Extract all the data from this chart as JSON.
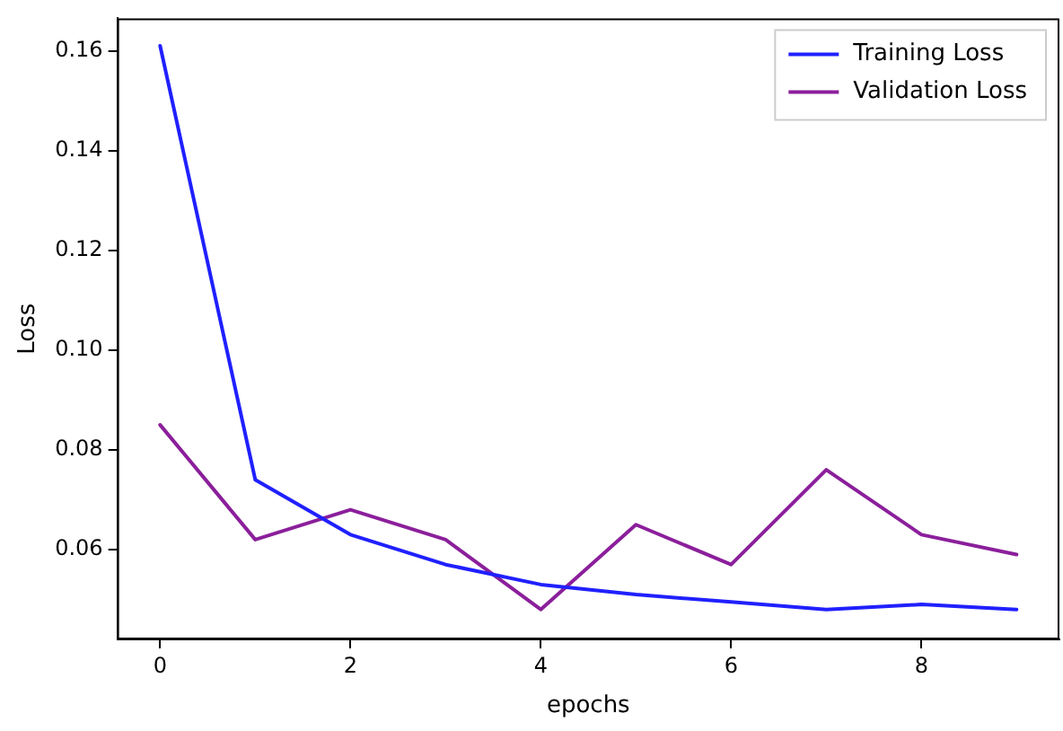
{
  "chart_data": {
    "type": "line",
    "xlabel": "epochs",
    "ylabel": "Loss",
    "x": [
      0,
      1,
      2,
      3,
      4,
      5,
      6,
      7,
      8,
      9
    ],
    "series": [
      {
        "name": "Training Loss",
        "color": "#2020ff",
        "values": [
          0.161,
          0.074,
          0.063,
          0.057,
          0.053,
          0.051,
          0.0495,
          0.048,
          0.049,
          0.048
        ]
      },
      {
        "name": "Validation Loss",
        "color": "#8b1f9b",
        "values": [
          0.085,
          0.062,
          0.068,
          0.062,
          0.048,
          0.065,
          0.057,
          0.076,
          0.063,
          0.059
        ]
      }
    ],
    "xlim": [
      -0.45,
      9.45
    ],
    "ylim": [
      0.042,
      0.1665
    ],
    "xticks": [
      0,
      2,
      4,
      6,
      8
    ],
    "yticks": [
      {
        "value": 0.06,
        "label": "0.06"
      },
      {
        "value": 0.08,
        "label": "0.08"
      },
      {
        "value": 0.1,
        "label": "0.10"
      },
      {
        "value": 0.12,
        "label": "0.12"
      },
      {
        "value": 0.14,
        "label": "0.14"
      },
      {
        "value": 0.16,
        "label": "0.16"
      }
    ],
    "grid": false,
    "legend": "top right",
    "marker": "none",
    "line_style": "solid"
  }
}
